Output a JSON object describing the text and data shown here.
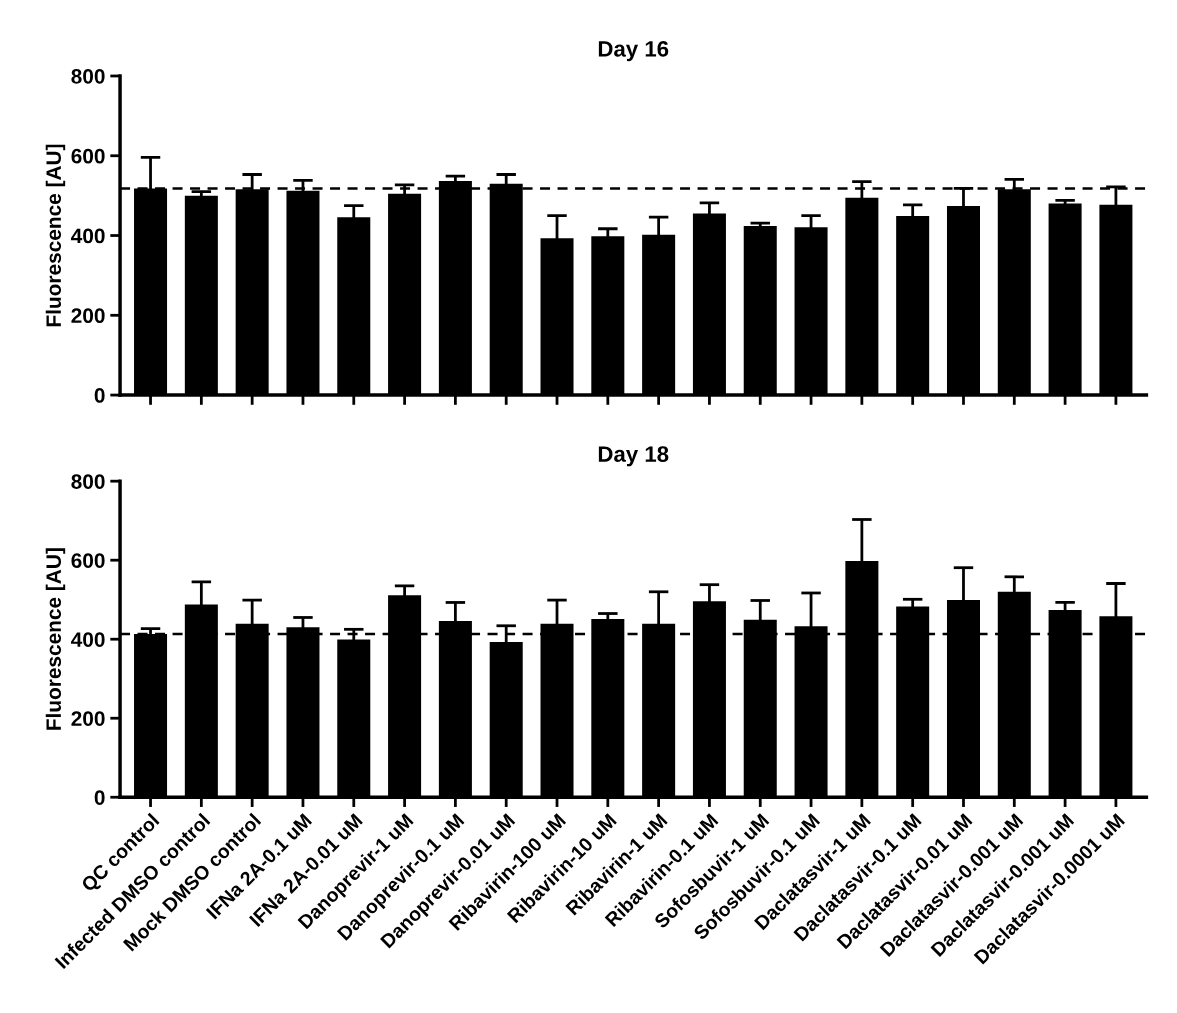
{
  "chart_data": [
    {
      "type": "bar",
      "title": "Day 16",
      "ylabel": "Fluorescence [AU]",
      "categories": [
        null,
        null,
        null,
        null,
        null,
        null,
        null,
        null,
        null,
        null,
        null,
        null,
        null,
        null,
        null,
        null,
        null,
        null,
        null,
        null
      ],
      "values": [
        518,
        500,
        516,
        512,
        446,
        505,
        537,
        530,
        393,
        398,
        402,
        455,
        424,
        421,
        495,
        449,
        474,
        516,
        480,
        477
      ],
      "errors": [
        78,
        10,
        37,
        26,
        29,
        22,
        12,
        23,
        57,
        19,
        44,
        27,
        7,
        29,
        40,
        28,
        44,
        25,
        8,
        45
      ],
      "color": "#000000",
      "ylim": [
        0,
        800
      ],
      "yticks": [
        0,
        200,
        400,
        600,
        800
      ],
      "tick_labels": "y",
      "grid": false,
      "ref_lines": [
        {
          "axis": "y",
          "value": 518,
          "line_style": "dashed",
          "color": "#000000"
        }
      ]
    },
    {
      "type": "bar",
      "title": "Day 18",
      "ylabel": "Fluorescence [AU]",
      "categories": [
        "QC control",
        "Infected DMSO control",
        "Mock DMSO control",
        "IFNa 2A-0.1 uM",
        "IFNa 2A-0.01 uM",
        "Danoprevir-1 uM",
        "Danoprevir-0.1 uM",
        "Danoprevir-0.01 uM",
        "Ribavirin-100 uM",
        "Ribavirin-10 uM",
        "Ribavirin-1 uM",
        "Ribavirin-0.1 uM",
        "Sofosbuvir-1 uM",
        "Sofosbuvir-0.1 uM",
        "Daclatasvir-1 uM",
        "Daclatasvir-0.1 uM",
        "Daclatasvir-0.01 uM",
        "Daclatasvir-0.001 uM",
        "Daclatasvir-0.001 uM",
        "Daclatasvir-0.0001 uM"
      ],
      "values": [
        413,
        488,
        439,
        430,
        399,
        511,
        446,
        393,
        439,
        451,
        439,
        496,
        449,
        433,
        598,
        483,
        499,
        520,
        474,
        458
      ],
      "errors": [
        14,
        57,
        60,
        25,
        26,
        24,
        47,
        41,
        60,
        14,
        81,
        42,
        49,
        84,
        105,
        18,
        82,
        38,
        19,
        83
      ],
      "color": "#000000",
      "ylim": [
        0,
        800
      ],
      "yticks": [
        0,
        200,
        400,
        600,
        800
      ],
      "grid": false,
      "ref_lines": [
        {
          "axis": "y",
          "value": 413,
          "line_style": "dashed",
          "color": "#000000"
        }
      ]
    }
  ]
}
